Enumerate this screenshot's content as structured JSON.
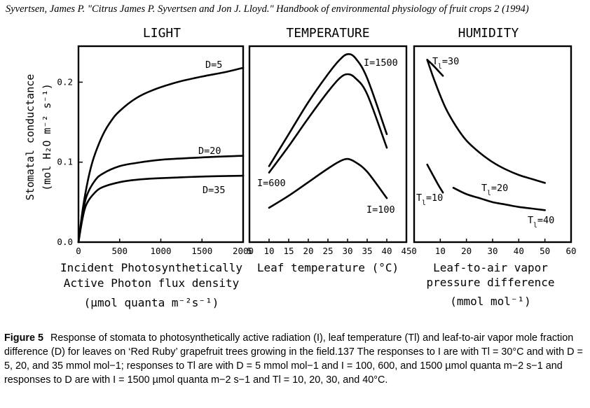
{
  "citation": "Syvertsen, James P. \"Citrus James P. Syvertsen and Jon J. Lloyd.\" Handbook of environmental physiology of fruit crops 2 (1994)",
  "caption": {
    "label": "Figure 5",
    "text": "Response of stomata to photosynthetically active radiation (I), leaf temperature (Tl) and leaf-to-air vapor mole fraction difference (D) for leaves on ‘Red Ruby’ grapefruit trees growing in the field.137 The responses to I are with Tl = 30°C and with D = 5, 20, and 35 mmol mol−1; responses to Tl are with D = 5 mmol mol−1 and I = 100, 600, and 1500 µmol quanta m−2 s−1 and responses to D are with I = 1500 µmol quanta m−2 s−1 and Tl = 10, 20, 30, and 40°C."
  },
  "y_axis": {
    "label_line1": "Stomatal conductance",
    "label_line2": "(mol H₂O m⁻² s⁻¹)",
    "ticks": [
      "0.0",
      "0.1",
      "0.2"
    ],
    "tick_values": [
      0,
      0.1,
      0.2
    ],
    "ylim": [
      0,
      0.245
    ]
  },
  "chart_data": [
    {
      "type": "line",
      "title": "LIGHT",
      "xlabel_lines": [
        "Incident Photosynthetically",
        "Active Photon flux density",
        "(µmol quanta m⁻²s⁻¹)"
      ],
      "ylabel": "Stomatal conductance (mol H2O m-2 s-1)",
      "xlim": [
        0,
        2000
      ],
      "ylim": [
        0,
        0.245
      ],
      "x_ticks": [
        0,
        500,
        1000,
        1500,
        2000
      ],
      "series": [
        {
          "name": "D=5",
          "x": [
            0,
            50,
            100,
            150,
            200,
            300,
            400,
            500,
            700,
            900,
            1200,
            1500,
            1800,
            2000
          ],
          "values": [
            0.0,
            0.04,
            0.07,
            0.093,
            0.11,
            0.135,
            0.152,
            0.164,
            0.18,
            0.19,
            0.2,
            0.207,
            0.213,
            0.218
          ]
        },
        {
          "name": "D=20",
          "x": [
            0,
            50,
            100,
            200,
            300,
            500,
            700,
            1000,
            1500,
            2000
          ],
          "values": [
            0.0,
            0.035,
            0.058,
            0.077,
            0.086,
            0.095,
            0.099,
            0.103,
            0.106,
            0.108
          ]
        },
        {
          "name": "D=35",
          "x": [
            0,
            50,
            100,
            200,
            300,
            500,
            700,
            1000,
            1500,
            2000
          ],
          "values": [
            0.0,
            0.03,
            0.048,
            0.062,
            0.069,
            0.075,
            0.078,
            0.08,
            0.082,
            0.083
          ]
        }
      ]
    },
    {
      "type": "line",
      "title": "TEMPERATURE",
      "xlabel": "Leaf temperature (°C)",
      "xlim": [
        5,
        45
      ],
      "ylim": [
        0,
        0.245
      ],
      "x_ticks": [
        5,
        10,
        15,
        20,
        25,
        30,
        35,
        40,
        45
      ],
      "series": [
        {
          "name": "I=1500",
          "x": [
            10,
            15,
            20,
            25,
            28,
            30,
            32,
            35,
            40
          ],
          "values": [
            0.095,
            0.135,
            0.175,
            0.21,
            0.228,
            0.235,
            0.23,
            0.205,
            0.135
          ]
        },
        {
          "name": "I=600",
          "x": [
            10,
            15,
            20,
            25,
            28,
            30,
            32,
            35,
            40
          ],
          "values": [
            0.087,
            0.12,
            0.155,
            0.188,
            0.205,
            0.21,
            0.205,
            0.185,
            0.118
          ]
        },
        {
          "name": "I=100",
          "x": [
            10,
            15,
            20,
            25,
            28,
            30,
            32,
            35,
            40
          ],
          "values": [
            0.043,
            0.058,
            0.075,
            0.092,
            0.101,
            0.104,
            0.1,
            0.088,
            0.055
          ]
        }
      ]
    },
    {
      "type": "line",
      "title": "HUMIDITY",
      "xlabel_lines": [
        "Leaf-to-air vapor",
        "pressure difference",
        "(mmol mol⁻¹)"
      ],
      "xlim": [
        0,
        60
      ],
      "ylim": [
        0,
        0.245
      ],
      "x_ticks": [
        0,
        10,
        20,
        30,
        40,
        50,
        60
      ],
      "series": [
        {
          "name": "Tl=30",
          "x": [
            5,
            8,
            12,
            16,
            20,
            25,
            30,
            35,
            40,
            45,
            50
          ],
          "values": [
            0.228,
            0.2,
            0.168,
            0.145,
            0.127,
            0.112,
            0.1,
            0.091,
            0.084,
            0.079,
            0.074
          ]
        },
        {
          "name": "Tl=20",
          "x": [
            15,
            20,
            25,
            30,
            35,
            40,
            45,
            50
          ],
          "values": [
            0.068,
            0.06,
            0.055,
            0.05,
            0.047,
            0.044,
            0.042,
            0.04
          ]
        },
        {
          "name": "Tl=10",
          "x": [
            5,
            7,
            9,
            11
          ],
          "values": [
            0.097,
            0.085,
            0.073,
            0.062
          ]
        },
        {
          "name": "Tl=40",
          "x": [
            5,
            7,
            9,
            11
          ],
          "values": [
            0.228,
            0.222,
            0.215,
            0.208
          ]
        }
      ]
    }
  ],
  "labels": {
    "light": [
      "D=5",
      "D=20",
      "D=35"
    ],
    "temperature": [
      "I=1500",
      "I=600",
      "I=100"
    ],
    "humidity": [
      "T",
      "l",
      "=30",
      "T",
      "l",
      "=20",
      "T",
      "l",
      "=10",
      "T",
      "l",
      "=40"
    ]
  }
}
